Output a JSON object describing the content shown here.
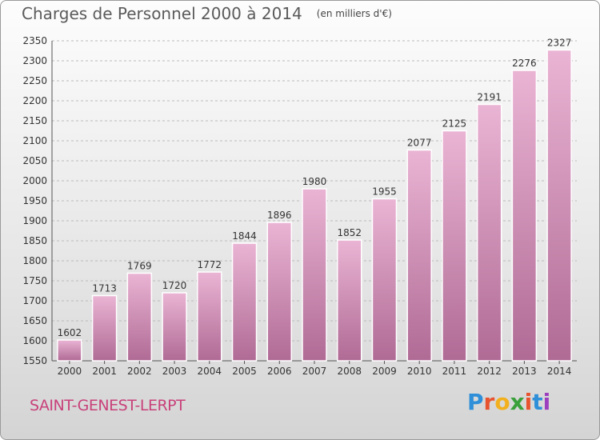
{
  "header": {
    "title": "Charges de Personnel 2000 à 2014",
    "subtitle": "(en milliers d'€)"
  },
  "commune": "SAINT-GENEST-LERPT",
  "logo": {
    "text": "Proxiti",
    "letter_colors": [
      "#2f8fd8",
      "#e8532f",
      "#f2b01e",
      "#3aa03a",
      "#e8532f",
      "#2f8fd8",
      "#9c3fbf"
    ]
  },
  "colors": {
    "bar_light": "#eab4d4",
    "bar_dark": "#b06b95",
    "bar_stroke": "#ffffff",
    "grid": "#bbbbbb",
    "axis_text": "#333333",
    "commune_text": "#c8417a"
  },
  "chart_data": {
    "type": "bar",
    "title": "Charges de Personnel 2000 à 2014",
    "subtitle": "(en milliers d'€)",
    "categories": [
      "2000",
      "2001",
      "2002",
      "2003",
      "2004",
      "2005",
      "2006",
      "2007",
      "2008",
      "2009",
      "2010",
      "2011",
      "2012",
      "2013",
      "2014"
    ],
    "values": [
      1602,
      1713,
      1769,
      1720,
      1772,
      1844,
      1896,
      1980,
      1852,
      1955,
      2077,
      2125,
      2191,
      2276,
      2327
    ],
    "ylim": [
      1550,
      2350
    ],
    "yticks": [
      1550,
      1600,
      1650,
      1700,
      1750,
      1800,
      1850,
      1900,
      1950,
      2000,
      2050,
      2100,
      2150,
      2200,
      2250,
      2300,
      2350
    ],
    "grid": true,
    "xlabel": "",
    "ylabel": ""
  }
}
